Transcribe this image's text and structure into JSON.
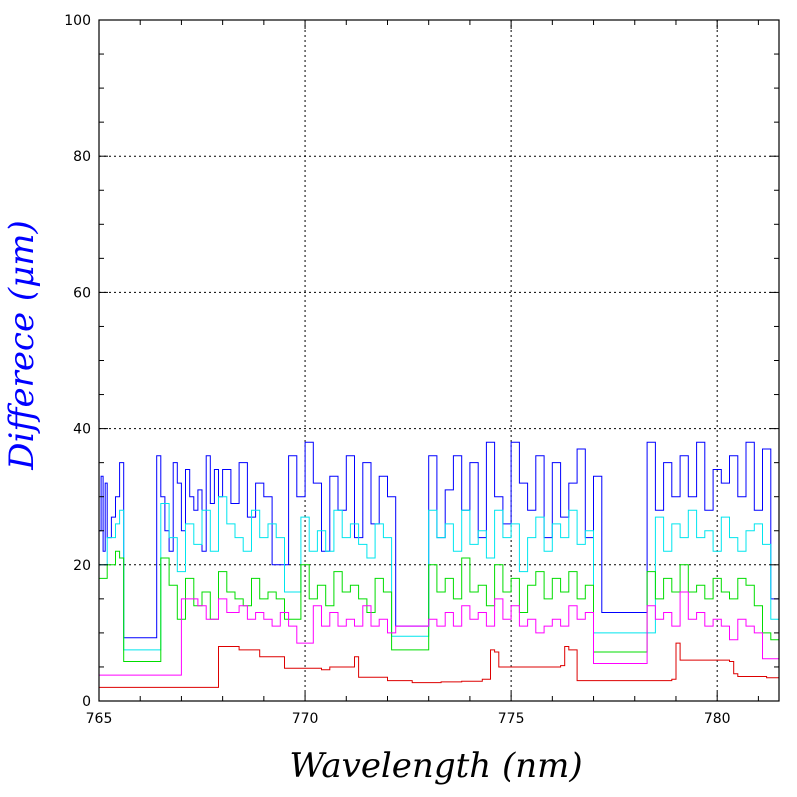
{
  "chart_data": {
    "type": "line",
    "xlabel": "Wavelength (nm)",
    "ylabel": "Differece (μm)",
    "xlim": [
      765,
      781.5
    ],
    "ylim": [
      0,
      100
    ],
    "x_ticks": [
      765,
      770,
      775,
      780
    ],
    "y_ticks": [
      0,
      20,
      40,
      60,
      80,
      100
    ],
    "x_tick_labels": [
      "765",
      "770",
      "775",
      "780"
    ],
    "y_tick_labels": [
      "0",
      "20",
      "40",
      "60",
      "80",
      "100"
    ],
    "grid": "dotted, at major ticks",
    "series": [
      {
        "color": "#0000ff",
        "x": [
          765.0,
          765.05,
          765.1,
          765.15,
          765.2,
          765.3,
          765.4,
          765.5,
          765.6,
          765.7,
          765.8,
          765.9,
          766.4,
          766.5,
          766.6,
          766.7,
          766.8,
          766.9,
          767.0,
          767.1,
          767.2,
          767.3,
          767.4,
          767.5,
          767.6,
          767.7,
          767.8,
          767.9,
          768.0,
          768.2,
          768.4,
          768.6,
          768.8,
          769.0,
          769.2,
          769.4,
          769.6,
          769.8,
          770.0,
          770.2,
          770.4,
          770.6,
          770.8,
          771.0,
          771.2,
          771.4,
          771.6,
          771.8,
          772.0,
          772.2,
          772.4,
          773.0,
          773.2,
          773.4,
          773.6,
          773.8,
          774.0,
          774.2,
          774.4,
          774.6,
          774.8,
          775.0,
          775.2,
          775.4,
          775.6,
          775.8,
          776.0,
          776.2,
          776.4,
          776.6,
          776.8,
          777.0,
          777.2,
          777.4,
          777.6,
          777.8,
          778.3,
          778.5,
          778.7,
          778.9,
          779.1,
          779.3,
          779.5,
          779.7,
          779.9,
          780.1,
          780.3,
          780.5,
          780.7,
          780.9,
          781.1,
          781.3,
          781.5
        ],
        "values": [
          25,
          33,
          22,
          32,
          24,
          27,
          30,
          35,
          9.3,
          9.3,
          9.3,
          9.3,
          36,
          30,
          25,
          22,
          35,
          32,
          25,
          34,
          30,
          28,
          31,
          22,
          36,
          29,
          34,
          30,
          34,
          29,
          35,
          27,
          32,
          30,
          20,
          20,
          36,
          30,
          38,
          32,
          22,
          33,
          28,
          36,
          24,
          35,
          26,
          33,
          30,
          11,
          11,
          36,
          24,
          31,
          36,
          28,
          35,
          24,
          38,
          30,
          26,
          38,
          32,
          28,
          36,
          24,
          35,
          27,
          32,
          37,
          24,
          33,
          13,
          13,
          13,
          13,
          38,
          28,
          35,
          30,
          36,
          30,
          38,
          28,
          34,
          32,
          36,
          30,
          38,
          28,
          37,
          15,
          15
        ]
      },
      {
        "color": "#00e5ee",
        "x": [
          765.0,
          765.2,
          765.4,
          765.5,
          765.6,
          765.8,
          766.3,
          766.5,
          766.7,
          766.9,
          767.1,
          767.3,
          767.5,
          767.7,
          767.9,
          768.1,
          768.3,
          768.5,
          768.7,
          768.9,
          769.1,
          769.3,
          769.5,
          769.7,
          769.9,
          770.1,
          770.3,
          770.5,
          770.7,
          770.9,
          771.1,
          771.3,
          771.5,
          771.7,
          771.9,
          772.1,
          772.3,
          773.0,
          773.2,
          773.4,
          773.6,
          773.8,
          774.0,
          774.2,
          774.4,
          774.6,
          774.8,
          775.0,
          775.2,
          775.4,
          775.6,
          775.8,
          776.0,
          776.2,
          776.4,
          776.6,
          776.8,
          777.0,
          777.2,
          778.3,
          778.5,
          778.7,
          778.9,
          779.1,
          779.3,
          779.5,
          779.7,
          779.9,
          780.1,
          780.3,
          780.5,
          780.7,
          780.9,
          781.1,
          781.3,
          781.5
        ],
        "values": [
          20,
          24,
          26,
          28,
          7.5,
          7.5,
          7.5,
          29,
          24,
          19,
          26,
          23,
          28,
          22,
          30,
          26,
          24,
          22,
          28,
          24,
          26,
          24,
          16,
          16,
          27,
          22,
          25,
          22,
          28,
          24,
          26,
          23,
          21,
          26,
          24,
          9.5,
          9.5,
          28,
          24,
          26,
          22,
          28,
          23,
          25,
          21,
          28,
          24,
          26,
          19,
          24,
          27,
          22,
          26,
          24,
          28,
          23,
          25,
          10,
          10,
          10,
          27,
          22,
          26,
          24,
          28,
          24,
          25,
          22,
          27,
          24,
          22,
          25,
          26,
          23,
          12,
          12
        ]
      },
      {
        "color": "#00dd00",
        "x": [
          765.0,
          765.2,
          765.4,
          765.5,
          765.6,
          765.8,
          766.4,
          766.5,
          766.7,
          766.9,
          767.1,
          767.3,
          767.5,
          767.7,
          767.9,
          768.1,
          768.3,
          768.5,
          768.7,
          768.9,
          769.1,
          769.3,
          769.5,
          769.7,
          769.9,
          770.1,
          770.3,
          770.5,
          770.7,
          770.9,
          771.1,
          771.3,
          771.5,
          771.7,
          771.9,
          772.1,
          772.3,
          772.5,
          773.0,
          773.2,
          773.4,
          773.6,
          773.8,
          774.0,
          774.2,
          774.4,
          774.6,
          774.8,
          775.0,
          775.2,
          775.4,
          775.6,
          775.8,
          776.0,
          776.2,
          776.4,
          776.6,
          776.8,
          777.0,
          777.2,
          777.4,
          778.3,
          778.5,
          778.7,
          778.9,
          779.1,
          779.3,
          779.5,
          779.7,
          779.9,
          780.1,
          780.3,
          780.5,
          780.7,
          780.9,
          781.1,
          781.3,
          781.5
        ],
        "values": [
          18,
          20,
          22,
          21,
          5.8,
          5.8,
          5.8,
          21,
          17,
          12,
          18,
          14,
          16,
          12,
          19,
          16,
          15,
          14,
          18,
          15,
          16,
          15,
          12,
          12,
          20,
          15,
          17,
          14,
          19,
          16,
          17,
          15,
          13,
          18,
          16,
          7.5,
          7.5,
          7.5,
          20,
          16,
          18,
          15,
          21,
          16,
          17,
          14,
          20,
          16,
          18,
          13,
          17,
          19,
          15,
          18,
          16,
          19,
          15,
          17,
          7.2,
          7.2,
          7.2,
          19,
          15,
          18,
          16,
          20,
          16,
          17,
          15,
          18,
          16,
          15,
          18,
          17,
          14,
          10,
          9,
          9
        ]
      },
      {
        "color": "#ff00ff",
        "x": [
          765.0,
          766.9,
          767.0,
          767.4,
          767.6,
          767.9,
          768.1,
          768.4,
          768.6,
          768.8,
          769.0,
          769.2,
          769.4,
          769.6,
          769.8,
          770.0,
          770.2,
          770.4,
          770.6,
          770.8,
          771.0,
          771.2,
          771.4,
          771.6,
          771.8,
          772.0,
          772.2,
          772.4,
          773.0,
          773.2,
          773.4,
          773.6,
          773.8,
          774.0,
          774.2,
          774.4,
          774.6,
          774.8,
          775.0,
          775.2,
          775.4,
          775.6,
          775.8,
          776.0,
          776.2,
          776.4,
          776.6,
          776.8,
          777.0,
          777.2,
          777.4,
          778.3,
          778.5,
          778.7,
          778.9,
          779.1,
          779.3,
          779.5,
          779.7,
          779.9,
          780.1,
          780.3,
          780.5,
          780.7,
          780.9,
          781.1,
          781.3,
          781.5
        ],
        "values": [
          3.8,
          3.8,
          15,
          14,
          12,
          15,
          13,
          14,
          12,
          13,
          12,
          11,
          13,
          11,
          8.5,
          8.5,
          14,
          11,
          13,
          11,
          12,
          11,
          14,
          11,
          12,
          10,
          11,
          11,
          12,
          11,
          13,
          11,
          14,
          12,
          13,
          11,
          15,
          12,
          14,
          11,
          12,
          10,
          11,
          12,
          11,
          14,
          12,
          13,
          5.5,
          5.5,
          5.5,
          14,
          12,
          13,
          11,
          16,
          12,
          13,
          11,
          12,
          11,
          9,
          12,
          11,
          10,
          6.2,
          6.2,
          6.2
        ]
      },
      {
        "color": "#dd0000",
        "x": [
          765.0,
          766.5,
          767.8,
          767.9,
          768.4,
          768.9,
          769.5,
          770.4,
          770.6,
          771.2,
          771.3,
          772.0,
          772.6,
          773.1,
          773.3,
          773.8,
          774.3,
          774.5,
          774.6,
          774.7,
          774.9,
          775.7,
          776.2,
          776.3,
          776.4,
          776.6,
          778.2,
          778.9,
          779.0,
          779.1,
          779.3,
          779.6,
          780.3,
          780.4,
          780.5,
          781.2,
          781.5
        ],
        "values": [
          2.0,
          2.0,
          2.0,
          8.0,
          7.5,
          6.5,
          4.8,
          4.6,
          5.0,
          6.5,
          3.5,
          3.0,
          2.7,
          2.7,
          2.8,
          2.9,
          3.2,
          7.5,
          7.2,
          5.0,
          5.0,
          5.0,
          5.2,
          8.0,
          7.5,
          3.0,
          3.0,
          3.2,
          8.5,
          6.0,
          6.0,
          6.0,
          5.8,
          4.0,
          3.6,
          3.4,
          3.3
        ]
      }
    ]
  }
}
